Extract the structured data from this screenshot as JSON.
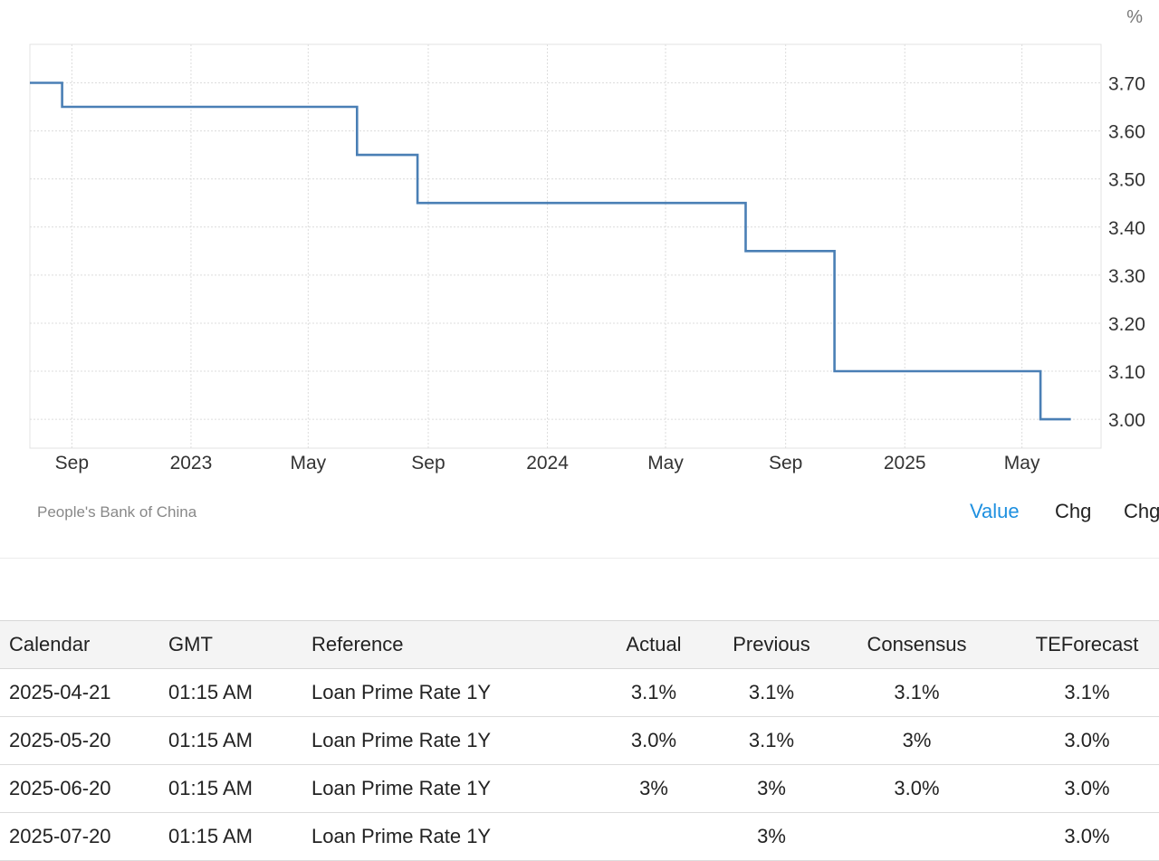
{
  "chart_data": {
    "type": "line",
    "step": true,
    "unit": "%",
    "x_ticks": [
      "Sep",
      "2023",
      "May",
      "Sep",
      "2024",
      "May",
      "Sep",
      "2025",
      "May"
    ],
    "yticks": [
      "3.70",
      "3.60",
      "3.50",
      "3.40",
      "3.30",
      "3.20",
      "3.10",
      "3.00"
    ],
    "ylim": [
      2.94,
      3.78
    ],
    "grid": true,
    "series": [
      {
        "color": "#4a7fb5",
        "points": [
          {
            "x": "2022-07-20",
            "y": 3.7
          },
          {
            "x": "2022-08-22",
            "y": 3.65
          },
          {
            "x": "2023-06-20",
            "y": 3.55
          },
          {
            "x": "2023-08-21",
            "y": 3.45
          },
          {
            "x": "2024-07-22",
            "y": 3.35
          },
          {
            "x": "2024-10-21",
            "y": 3.1
          },
          {
            "x": "2025-05-20",
            "y": 3.0
          },
          {
            "x": "2025-06-20",
            "y": 3.0
          }
        ]
      }
    ]
  },
  "source": "People's Bank of China",
  "toggles": {
    "value": "Value",
    "chg": "Chg",
    "chgpct": "Chg%"
  },
  "table": {
    "headers": [
      "Calendar",
      "GMT",
      "Reference",
      "Actual",
      "Previous",
      "Consensus",
      "TEForecast"
    ],
    "rows": [
      {
        "date": "2025-04-21",
        "gmt": "01:15 AM",
        "ref": "Loan Prime Rate 1Y",
        "actual": "3.1%",
        "previous": "3.1%",
        "consensus": "3.1%",
        "forecast": "3.1%"
      },
      {
        "date": "2025-05-20",
        "gmt": "01:15 AM",
        "ref": "Loan Prime Rate 1Y",
        "actual": "3.0%",
        "previous": "3.1%",
        "consensus": "3%",
        "forecast": "3.0%"
      },
      {
        "date": "2025-06-20",
        "gmt": "01:15 AM",
        "ref": "Loan Prime Rate 1Y",
        "actual": "3%",
        "previous": "3%",
        "consensus": "3.0%",
        "forecast": "3.0%"
      },
      {
        "date": "2025-07-20",
        "gmt": "01:15 AM",
        "ref": "Loan Prime Rate 1Y",
        "actual": "",
        "previous": "3%",
        "consensus": "",
        "forecast": "3.0%"
      }
    ]
  }
}
